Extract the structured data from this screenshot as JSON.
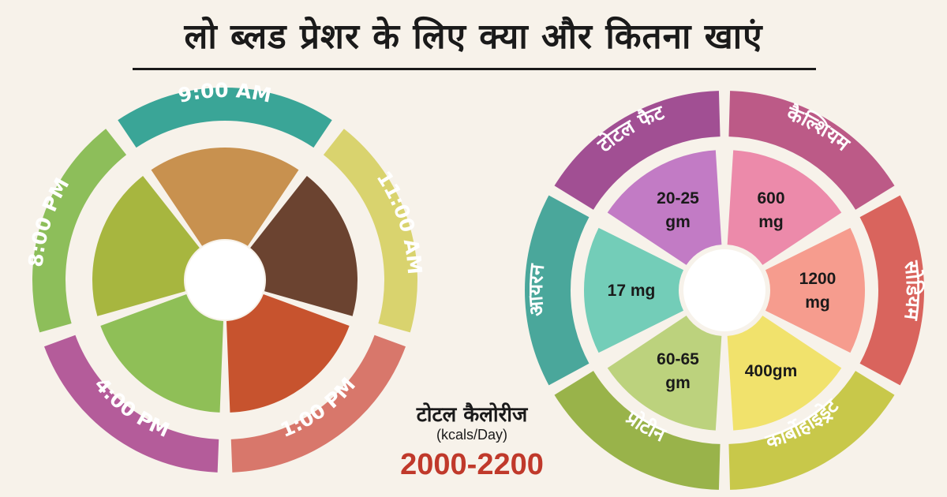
{
  "title": "लो ब्लड प्रेशर के लिए क्या और कितना खाएं",
  "meal_wheel": {
    "times": [
      {
        "label": "9:00 AM",
        "color": "#3aa597",
        "food": "savory-pastry-photo",
        "photo_color": "#c8914f"
      },
      {
        "label": "11:00 AM",
        "color": "#d9d36e",
        "food": "coffee-cup-photo",
        "photo_color": "#6b4330"
      },
      {
        "label": "1:00 PM",
        "color": "#d8776b",
        "food": "chicken-curry-photo",
        "photo_color": "#c7532e"
      },
      {
        "label": "4:00 PM",
        "color": "#b45c9a",
        "food": "guava-fruit-photo",
        "photo_color": "#8fbf57"
      },
      {
        "label": "8:00 PM",
        "color": "#8dbe5a",
        "food": "green-dal-photo",
        "photo_color": "#a7b63f"
      }
    ]
  },
  "nutrient_wheel": {
    "items": [
      {
        "label": "टोटल फैट",
        "value_lines": [
          "20-25",
          "gm"
        ],
        "ring_color": "#a14f93",
        "value_color": "#c27bc5"
      },
      {
        "label": "कैल्शियम",
        "value_lines": [
          "600",
          "mg"
        ],
        "ring_color": "#bc5a87",
        "value_color": "#ec8aaa"
      },
      {
        "label": "सोडियम",
        "value_lines": [
          "1200",
          "mg"
        ],
        "ring_color": "#d9645d",
        "value_color": "#f69c8e"
      },
      {
        "label": "कार्बोहाइड्रेट",
        "value_lines": [
          "400gm"
        ],
        "ring_color": "#c8c84a",
        "value_color": "#f1e26c"
      },
      {
        "label": "प्रोटीन",
        "value_lines": [
          "60-65",
          "gm"
        ],
        "ring_color": "#99b34a",
        "value_color": "#bcd27d"
      },
      {
        "label": "आयरन",
        "value_lines": [
          "17 mg"
        ],
        "ring_color": "#4aa79b",
        "value_color": "#73cdb8"
      }
    ]
  },
  "calories": {
    "title": "टोटल कैलोरीज",
    "unit": "(kcals/Day)",
    "value": "2000-2200",
    "value_color": "#c0392b"
  }
}
